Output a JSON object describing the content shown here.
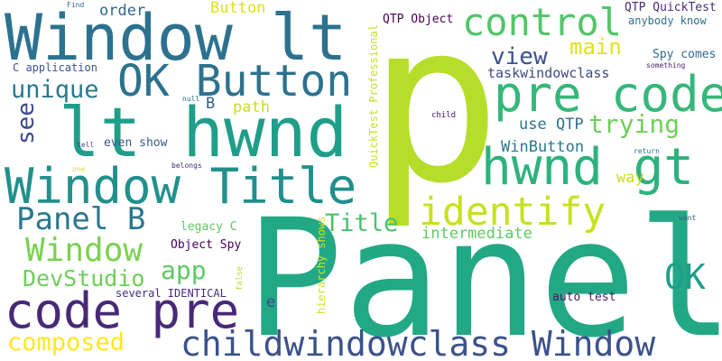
{
  "words": [
    {
      "text": "Panel",
      "color": "#22a884"
    },
    {
      "text": "p",
      "color": "#b5de2b"
    },
    {
      "text": "Window lt",
      "color": "#2c728e"
    },
    {
      "text": "lt hwnd",
      "color": "#1f9e89"
    },
    {
      "text": "Window Title",
      "color": "#21908d"
    },
    {
      "text": "pre code",
      "color": "#35b779"
    },
    {
      "text": "hwnd gt",
      "color": "#2db27d"
    },
    {
      "text": "control",
      "color": "#52c569"
    },
    {
      "text": "OK Button",
      "color": "#2c728e"
    },
    {
      "text": "code pre",
      "color": "#482878"
    },
    {
      "text": "childwindowclass Window",
      "color": "#3b528b"
    },
    {
      "text": "identify",
      "color": "#c8e020"
    },
    {
      "text": "Panel B",
      "color": "#2a788e"
    },
    {
      "text": "Window",
      "color": "#7ad151"
    },
    {
      "text": "OK",
      "color": "#1f9e89"
    },
    {
      "text": "composed",
      "color": "#fde725"
    },
    {
      "text": "app",
      "color": "#5ec962"
    },
    {
      "text": "Title",
      "color": "#4ac16d"
    },
    {
      "text": "unique",
      "color": "#2a788e"
    },
    {
      "text": "trying",
      "color": "#70cf57"
    },
    {
      "text": "view",
      "color": "#3b528b"
    },
    {
      "text": "main",
      "color": "#dde318"
    },
    {
      "text": "see",
      "color": "#3e4989"
    },
    {
      "text": "DevStudio",
      "color": "#6ece58"
    },
    {
      "text": "intermediate",
      "color": "#5ec962"
    },
    {
      "text": "path",
      "color": "#c8e020"
    },
    {
      "text": "use QTP",
      "color": "#2c728e"
    },
    {
      "text": "WinButton",
      "color": "#2a788e"
    },
    {
      "text": "taskwindowclass",
      "color": "#3e4989"
    },
    {
      "text": "Spy comes",
      "color": "#31688e"
    },
    {
      "text": "QTP QuickTest",
      "color": "#472d7b"
    },
    {
      "text": "anybody know",
      "color": "#2c728e"
    },
    {
      "text": "QTP Object",
      "color": "#440154"
    },
    {
      "text": "way",
      "color": "#c8e020"
    },
    {
      "text": "Button",
      "color": "#dde318"
    },
    {
      "text": "order",
      "color": "#31688e"
    },
    {
      "text": "B",
      "color": "#355f8d"
    },
    {
      "text": "C application",
      "color": "#3b528b"
    },
    {
      "text": "even show",
      "color": "#38588c"
    },
    {
      "text": "legacy C",
      "color": "#5ec962"
    },
    {
      "text": "Object Spy",
      "color": "#440154"
    },
    {
      "text": "several IDENTICAL",
      "color": "#472c7a"
    },
    {
      "text": "auto test",
      "color": "#48186a"
    },
    {
      "text": "e",
      "color": "#414487"
    },
    {
      "text": "QuickTest Professional",
      "color": "#c8e020"
    },
    {
      "text": "hierarchy shows",
      "color": "#d2e21b"
    },
    {
      "text": "Find",
      "color": "#33638d"
    },
    {
      "text": "child",
      "color": "#471164"
    },
    {
      "text": "something",
      "color": "#481b6d"
    },
    {
      "text": "tell",
      "color": "#3e4a89"
    },
    {
      "text": "null",
      "color": "#2c738e"
    },
    {
      "text": "one",
      "color": "#dde318"
    },
    {
      "text": "belongs",
      "color": "#482576"
    },
    {
      "text": "return",
      "color": "#2e6f8e"
    },
    {
      "text": "want",
      "color": "#33638d"
    },
    {
      "text": "false",
      "color": "#b8de29"
    }
  ]
}
